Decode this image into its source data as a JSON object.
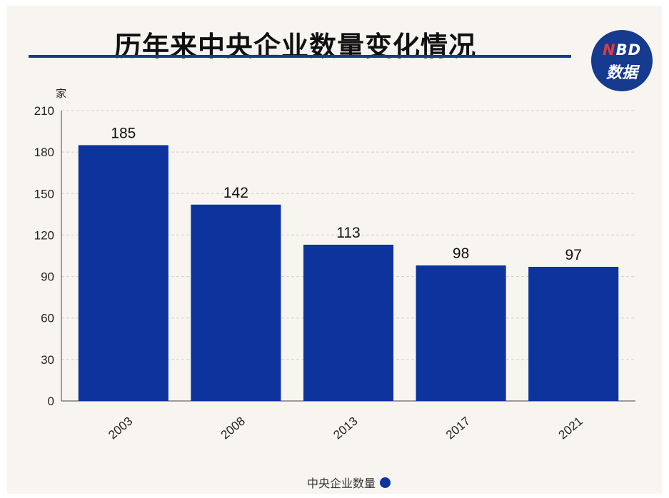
{
  "title": "历年来中央企业数量变化情况",
  "logo": {
    "line1_n": "N",
    "line1_rest": "BD",
    "line2": "数据",
    "accent": "#e23b3b",
    "bg": "#163a8e"
  },
  "colors": {
    "bar": "#0d339d",
    "grid": "#cfcfcf",
    "rule": "#1b3a8c"
  },
  "chart_data": {
    "type": "bar",
    "title": "历年来中央企业数量变化情况",
    "ylabel": "家",
    "xlabel": "",
    "categories": [
      "2003",
      "2008",
      "2013",
      "2017",
      "2021"
    ],
    "series": [
      {
        "name": "中央企业数量",
        "values": [
          185,
          142,
          113,
          98,
          97
        ]
      }
    ],
    "ylim": [
      0,
      210
    ],
    "yticks": [
      0,
      30,
      60,
      90,
      120,
      150,
      180,
      210
    ],
    "grid": true,
    "legend": "bottom-center",
    "data_labels": true
  }
}
